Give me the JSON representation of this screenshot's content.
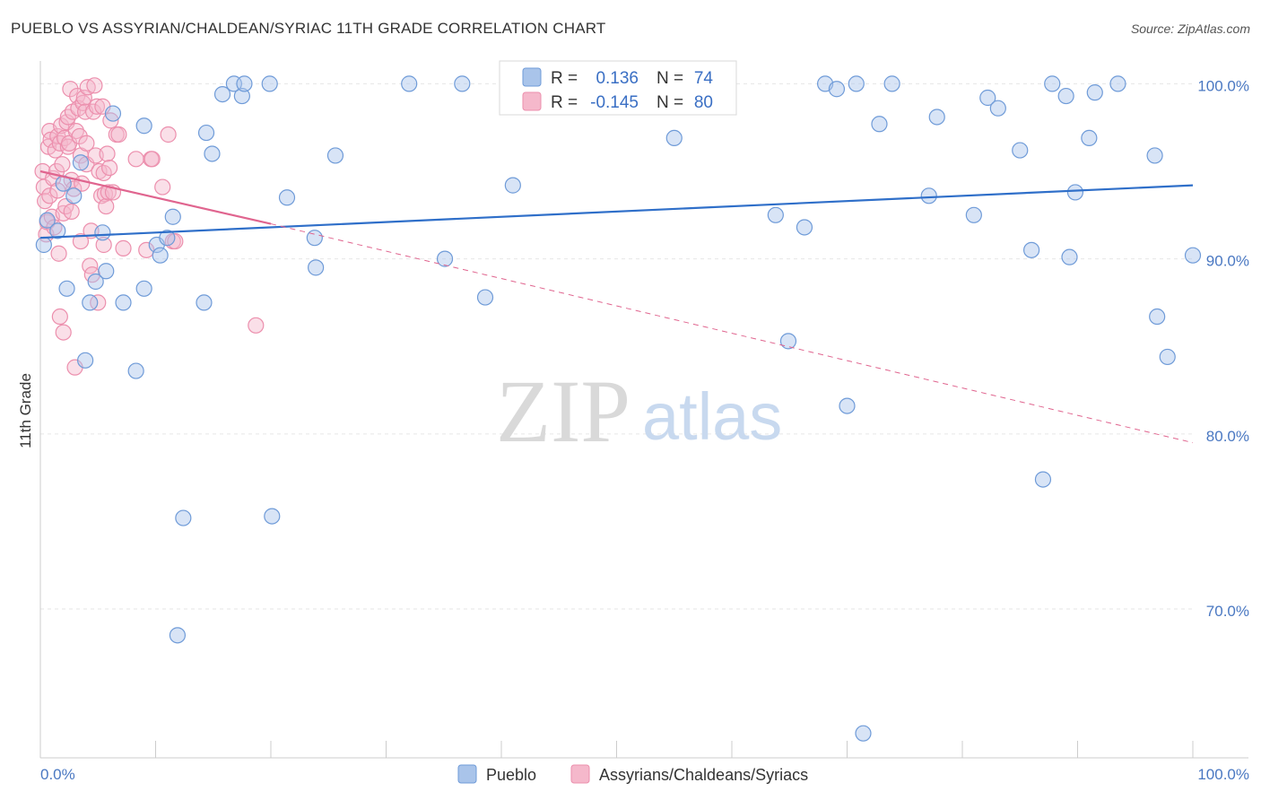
{
  "title": "PUEBLO VS ASSYRIAN/CHALDEAN/SYRIAC 11TH GRADE CORRELATION CHART",
  "source": "Source: ZipAtlas.com",
  "watermark": {
    "zip": "ZIP",
    "atlas": "atlas"
  },
  "colors": {
    "blue_fill": "#a9c4ea",
    "blue_stroke": "#6f9bd8",
    "blue_line": "#2f6fc9",
    "pink_fill": "#f5b8cb",
    "pink_stroke": "#ec8fad",
    "pink_line": "#e0658f",
    "grid": "#e6e6e6",
    "tick_text": "#4a78c2"
  },
  "chart_data": {
    "type": "scatter",
    "title": "PUEBLO VS ASSYRIAN/CHALDEAN/SYRIAC 11TH GRADE CORRELATION CHART",
    "xlabel": "",
    "ylabel": "11th Grade",
    "xlim": [
      0,
      100
    ],
    "ylim": [
      61.5,
      101.3
    ],
    "x_tick_labels": [
      "0.0%",
      "100.0%"
    ],
    "y_ticks": [
      70,
      80,
      90,
      100
    ],
    "y_tick_labels": [
      "70.0%",
      "80.0%",
      "90.0%",
      "100.0%"
    ],
    "grid": true,
    "legend": {
      "placement": "top-center",
      "entries": [
        {
          "r_label": "R =",
          "r_value": "0.136",
          "n_label": "N =",
          "n_value": "74"
        },
        {
          "r_label": "R =",
          "r_value": "-0.145",
          "n_label": "N =",
          "n_value": "80"
        }
      ]
    },
    "series": [
      {
        "name": "Pueblo",
        "color": "#a9c4ea",
        "trend": {
          "x": [
            0,
            100
          ],
          "y": [
            91.2,
            94.2
          ]
        },
        "points": [
          {
            "x": 0.3,
            "y": 90.8
          },
          {
            "x": 0.6,
            "y": 92.2
          },
          {
            "x": 1.5,
            "y": 91.6
          },
          {
            "x": 2.0,
            "y": 94.3
          },
          {
            "x": 2.3,
            "y": 88.3
          },
          {
            "x": 2.9,
            "y": 93.6
          },
          {
            "x": 3.5,
            "y": 95.5
          },
          {
            "x": 3.9,
            "y": 84.2
          },
          {
            "x": 4.3,
            "y": 87.5
          },
          {
            "x": 4.8,
            "y": 88.7
          },
          {
            "x": 5.4,
            "y": 91.5
          },
          {
            "x": 5.7,
            "y": 89.3
          },
          {
            "x": 6.3,
            "y": 98.3
          },
          {
            "x": 7.2,
            "y": 87.5
          },
          {
            "x": 8.3,
            "y": 83.6
          },
          {
            "x": 9.0,
            "y": 97.6
          },
          {
            "x": 9.0,
            "y": 88.3
          },
          {
            "x": 10.1,
            "y": 90.8
          },
          {
            "x": 10.4,
            "y": 90.2
          },
          {
            "x": 11.0,
            "y": 91.2
          },
          {
            "x": 11.5,
            "y": 92.4
          },
          {
            "x": 11.9,
            "y": 68.5
          },
          {
            "x": 12.4,
            "y": 75.2
          },
          {
            "x": 14.2,
            "y": 87.5
          },
          {
            "x": 14.4,
            "y": 97.2
          },
          {
            "x": 14.9,
            "y": 96.0
          },
          {
            "x": 15.8,
            "y": 99.4
          },
          {
            "x": 16.8,
            "y": 100.0
          },
          {
            "x": 17.5,
            "y": 99.3
          },
          {
            "x": 17.7,
            "y": 100.0
          },
          {
            "x": 19.9,
            "y": 100.0
          },
          {
            "x": 20.1,
            "y": 75.3
          },
          {
            "x": 21.4,
            "y": 93.5
          },
          {
            "x": 23.8,
            "y": 91.2
          },
          {
            "x": 23.9,
            "y": 89.5
          },
          {
            "x": 25.6,
            "y": 95.9
          },
          {
            "x": 32.0,
            "y": 100.0
          },
          {
            "x": 35.1,
            "y": 90.0
          },
          {
            "x": 36.6,
            "y": 100.0
          },
          {
            "x": 38.6,
            "y": 87.8
          },
          {
            "x": 41.0,
            "y": 94.2
          },
          {
            "x": 44.6,
            "y": 100.0
          },
          {
            "x": 45.6,
            "y": 100.0
          },
          {
            "x": 55.0,
            "y": 96.9
          },
          {
            "x": 63.8,
            "y": 92.5
          },
          {
            "x": 64.9,
            "y": 85.3
          },
          {
            "x": 66.3,
            "y": 91.8
          },
          {
            "x": 68.1,
            "y": 100.0
          },
          {
            "x": 69.1,
            "y": 99.7
          },
          {
            "x": 70.0,
            "y": 81.6
          },
          {
            "x": 70.8,
            "y": 100.0
          },
          {
            "x": 72.8,
            "y": 97.7
          },
          {
            "x": 73.9,
            "y": 100.0
          },
          {
            "x": 77.1,
            "y": 93.6
          },
          {
            "x": 77.8,
            "y": 98.1
          },
          {
            "x": 81.0,
            "y": 92.5
          },
          {
            "x": 82.2,
            "y": 99.2
          },
          {
            "x": 83.1,
            "y": 98.6
          },
          {
            "x": 85.0,
            "y": 96.2
          },
          {
            "x": 86.0,
            "y": 90.5
          },
          {
            "x": 87.0,
            "y": 77.4
          },
          {
            "x": 87.8,
            "y": 100.0
          },
          {
            "x": 89.0,
            "y": 99.3
          },
          {
            "x": 89.3,
            "y": 90.1
          },
          {
            "x": 89.8,
            "y": 93.8
          },
          {
            "x": 91.0,
            "y": 96.9
          },
          {
            "x": 91.5,
            "y": 99.5
          },
          {
            "x": 93.5,
            "y": 100.0
          },
          {
            "x": 96.7,
            "y": 95.9
          },
          {
            "x": 96.9,
            "y": 86.7
          },
          {
            "x": 97.8,
            "y": 84.4
          },
          {
            "x": 100.0,
            "y": 90.2
          },
          {
            "x": 71.4,
            "y": 62.9
          },
          {
            "x": 47.2,
            "y": 100.0
          }
        ]
      },
      {
        "name": "Assyrians/Chaldeans/Syriacs",
        "color": "#f5b8cb",
        "trend": {
          "x": [
            0,
            20
          ],
          "y": [
            95.0,
            92.0
          ]
        },
        "trend_dashed": {
          "x": [
            20,
            100
          ],
          "y": [
            92.0,
            79.5
          ]
        },
        "points": [
          {
            "x": 0.2,
            "y": 95.0
          },
          {
            "x": 0.3,
            "y": 94.1
          },
          {
            "x": 0.4,
            "y": 93.3
          },
          {
            "x": 0.5,
            "y": 91.4
          },
          {
            "x": 0.6,
            "y": 92.1
          },
          {
            "x": 0.7,
            "y": 96.4
          },
          {
            "x": 0.8,
            "y": 97.3
          },
          {
            "x": 0.8,
            "y": 93.6
          },
          {
            "x": 0.9,
            "y": 96.8
          },
          {
            "x": 1.0,
            "y": 92.4
          },
          {
            "x": 1.1,
            "y": 94.6
          },
          {
            "x": 1.2,
            "y": 91.8
          },
          {
            "x": 1.3,
            "y": 96.2
          },
          {
            "x": 1.4,
            "y": 95.0
          },
          {
            "x": 1.5,
            "y": 97.0
          },
          {
            "x": 1.5,
            "y": 93.9
          },
          {
            "x": 1.6,
            "y": 90.3
          },
          {
            "x": 1.7,
            "y": 96.6
          },
          {
            "x": 1.7,
            "y": 86.7
          },
          {
            "x": 1.8,
            "y": 97.6
          },
          {
            "x": 1.9,
            "y": 95.4
          },
          {
            "x": 2.0,
            "y": 92.6
          },
          {
            "x": 2.0,
            "y": 85.8
          },
          {
            "x": 2.1,
            "y": 96.9
          },
          {
            "x": 2.2,
            "y": 93.0
          },
          {
            "x": 2.3,
            "y": 97.8
          },
          {
            "x": 2.4,
            "y": 98.1
          },
          {
            "x": 2.4,
            "y": 96.4
          },
          {
            "x": 2.5,
            "y": 96.6
          },
          {
            "x": 2.6,
            "y": 99.7
          },
          {
            "x": 2.7,
            "y": 94.5
          },
          {
            "x": 2.7,
            "y": 92.7
          },
          {
            "x": 2.8,
            "y": 98.4
          },
          {
            "x": 2.9,
            "y": 94.0
          },
          {
            "x": 3.0,
            "y": 83.8
          },
          {
            "x": 3.1,
            "y": 97.3
          },
          {
            "x": 3.2,
            "y": 99.3
          },
          {
            "x": 3.3,
            "y": 98.6
          },
          {
            "x": 3.4,
            "y": 97.0
          },
          {
            "x": 3.5,
            "y": 95.9
          },
          {
            "x": 3.5,
            "y": 91.0
          },
          {
            "x": 3.6,
            "y": 94.3
          },
          {
            "x": 3.7,
            "y": 98.9
          },
          {
            "x": 3.8,
            "y": 99.2
          },
          {
            "x": 3.9,
            "y": 98.4
          },
          {
            "x": 4.0,
            "y": 96.6
          },
          {
            "x": 4.0,
            "y": 95.4
          },
          {
            "x": 4.1,
            "y": 99.8
          },
          {
            "x": 4.3,
            "y": 89.6
          },
          {
            "x": 4.4,
            "y": 91.6
          },
          {
            "x": 4.5,
            "y": 89.1
          },
          {
            "x": 4.6,
            "y": 98.4
          },
          {
            "x": 4.7,
            "y": 99.9
          },
          {
            "x": 4.8,
            "y": 95.9
          },
          {
            "x": 4.9,
            "y": 98.7
          },
          {
            "x": 5.0,
            "y": 87.5
          },
          {
            "x": 5.1,
            "y": 95.0
          },
          {
            "x": 5.3,
            "y": 93.6
          },
          {
            "x": 5.4,
            "y": 98.7
          },
          {
            "x": 5.5,
            "y": 90.8
          },
          {
            "x": 5.5,
            "y": 94.9
          },
          {
            "x": 5.6,
            "y": 93.7
          },
          {
            "x": 5.7,
            "y": 93.0
          },
          {
            "x": 5.8,
            "y": 96.0
          },
          {
            "x": 5.9,
            "y": 93.8
          },
          {
            "x": 6.0,
            "y": 95.2
          },
          {
            "x": 6.1,
            "y": 97.9
          },
          {
            "x": 6.3,
            "y": 93.8
          },
          {
            "x": 6.6,
            "y": 97.1
          },
          {
            "x": 6.8,
            "y": 97.1
          },
          {
            "x": 7.2,
            "y": 90.6
          },
          {
            "x": 8.3,
            "y": 95.7
          },
          {
            "x": 9.2,
            "y": 90.5
          },
          {
            "x": 9.6,
            "y": 95.7
          },
          {
            "x": 9.7,
            "y": 95.7
          },
          {
            "x": 10.6,
            "y": 94.1
          },
          {
            "x": 11.1,
            "y": 97.1
          },
          {
            "x": 11.5,
            "y": 91.0
          },
          {
            "x": 11.7,
            "y": 91.0
          },
          {
            "x": 18.7,
            "y": 86.2
          }
        ]
      }
    ]
  },
  "legend_bottom": {
    "items": [
      {
        "label": "Pueblo"
      },
      {
        "label": "Assyrians/Chaldeans/Syriacs"
      }
    ]
  }
}
